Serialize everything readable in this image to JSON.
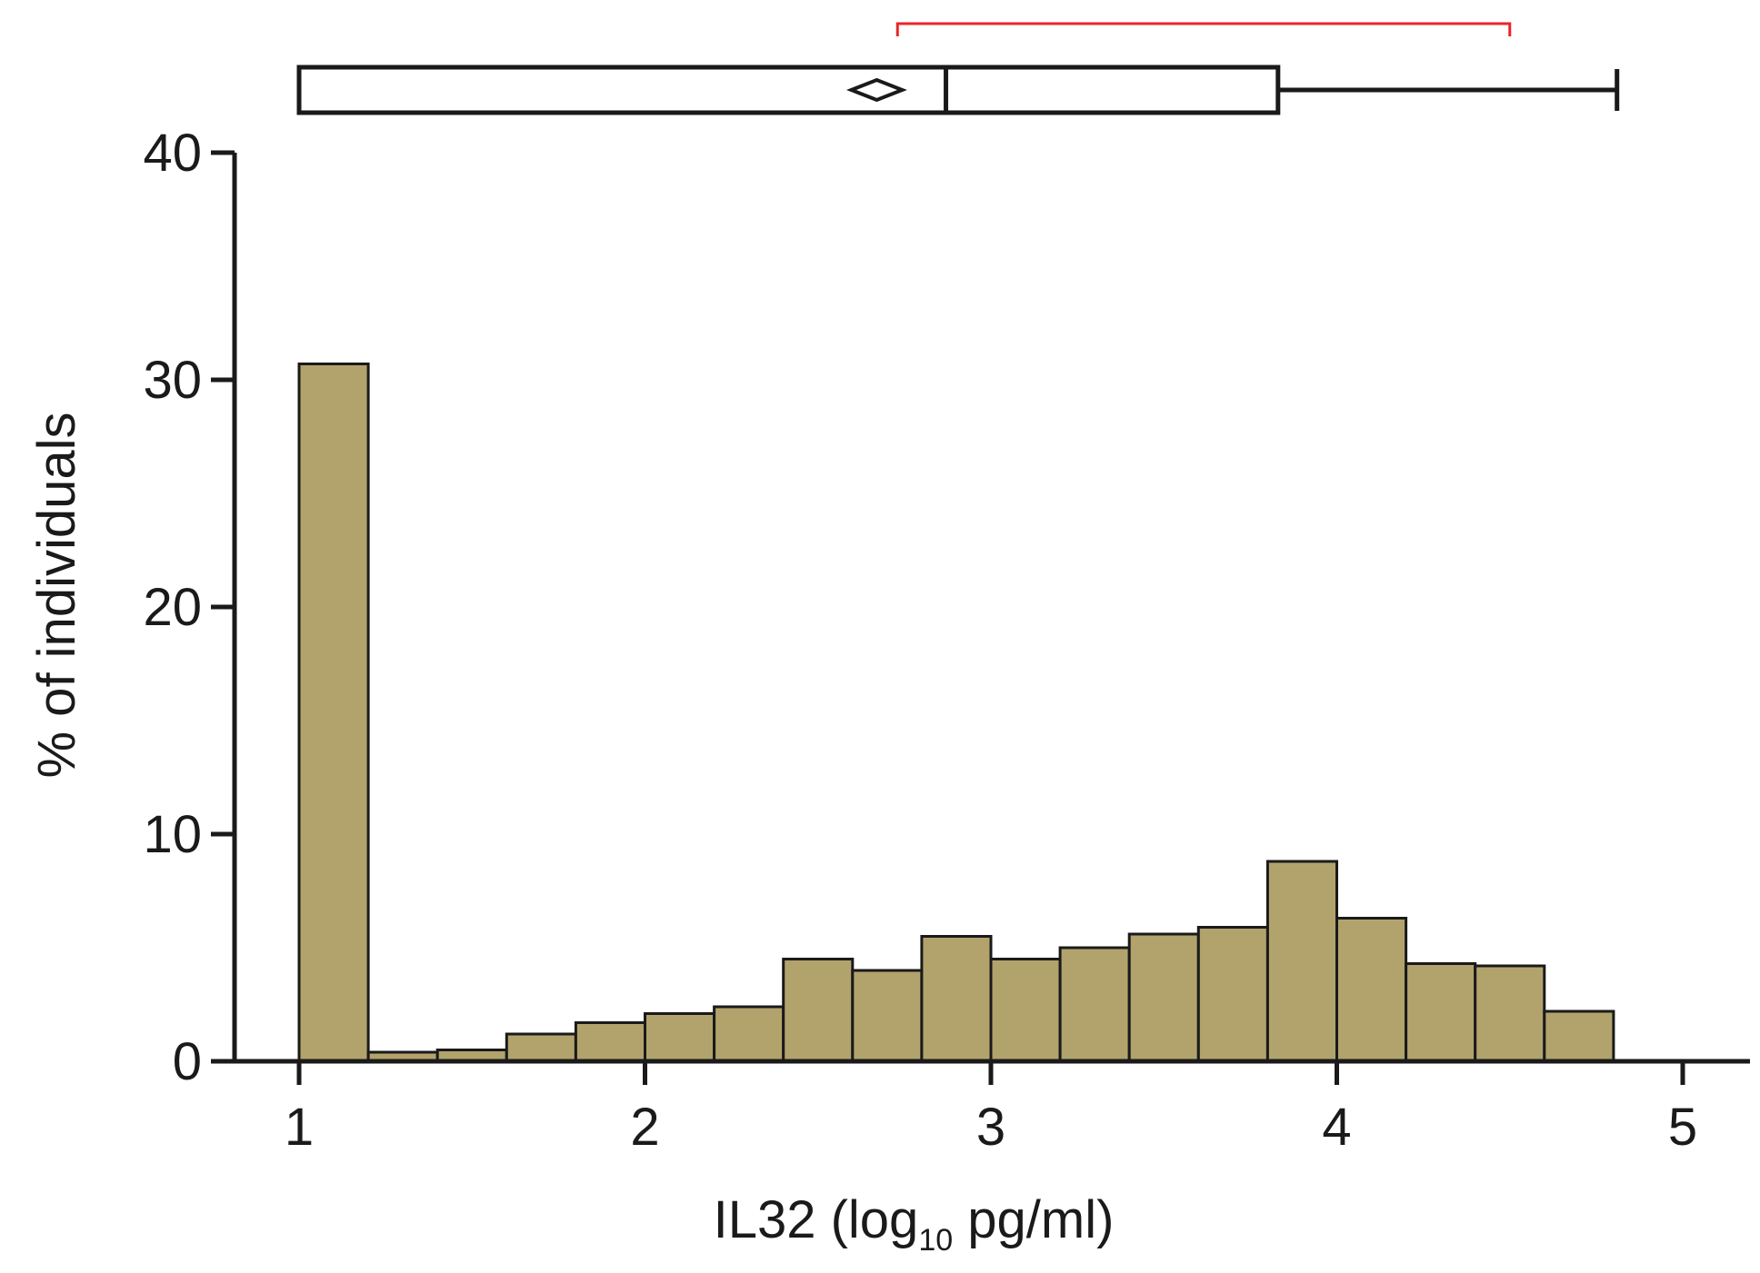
{
  "chart_data": {
    "type": "bar",
    "xlabel": {
      "pre": "IL32 (log",
      "sub": "10",
      "post": " pg/ml)"
    },
    "ylabel": "% of individuals",
    "xlim": [
      0.8,
      5.2
    ],
    "ylim": [
      0,
      40
    ],
    "xticks": [
      1,
      2,
      3,
      4,
      5
    ],
    "yticks": [
      0,
      10,
      20,
      30,
      40
    ],
    "bin_width": 0.2,
    "bins": [
      {
        "x0": 1.0,
        "value": 30.7
      },
      {
        "x0": 1.2,
        "value": 0.4
      },
      {
        "x0": 1.4,
        "value": 0.5
      },
      {
        "x0": 1.6,
        "value": 1.2
      },
      {
        "x0": 1.8,
        "value": 1.7
      },
      {
        "x0": 2.0,
        "value": 2.1
      },
      {
        "x0": 2.2,
        "value": 2.4
      },
      {
        "x0": 2.4,
        "value": 4.5
      },
      {
        "x0": 2.6,
        "value": 4.0
      },
      {
        "x0": 2.8,
        "value": 5.5
      },
      {
        "x0": 3.0,
        "value": 4.5
      },
      {
        "x0": 3.2,
        "value": 5.0
      },
      {
        "x0": 3.4,
        "value": 5.6
      },
      {
        "x0": 3.6,
        "value": 5.9
      },
      {
        "x0": 3.8,
        "value": 8.8
      },
      {
        "x0": 4.0,
        "value": 6.3
      },
      {
        "x0": 4.2,
        "value": 4.3
      },
      {
        "x0": 4.4,
        "value": 4.2
      },
      {
        "x0": 4.6,
        "value": 2.2
      }
    ],
    "boxplot": {
      "min": 1.0,
      "q1": 1.0,
      "median": 2.87,
      "q3": 3.83,
      "max": 4.81,
      "mean": 2.67
    },
    "bracket": {
      "from": 2.73,
      "to": 4.5
    },
    "colors": {
      "bar_fill": "#b2a36c",
      "bar_stroke": "#1a1a1a",
      "axis": "#1a1a1a",
      "bracket": "#e8262a"
    }
  }
}
